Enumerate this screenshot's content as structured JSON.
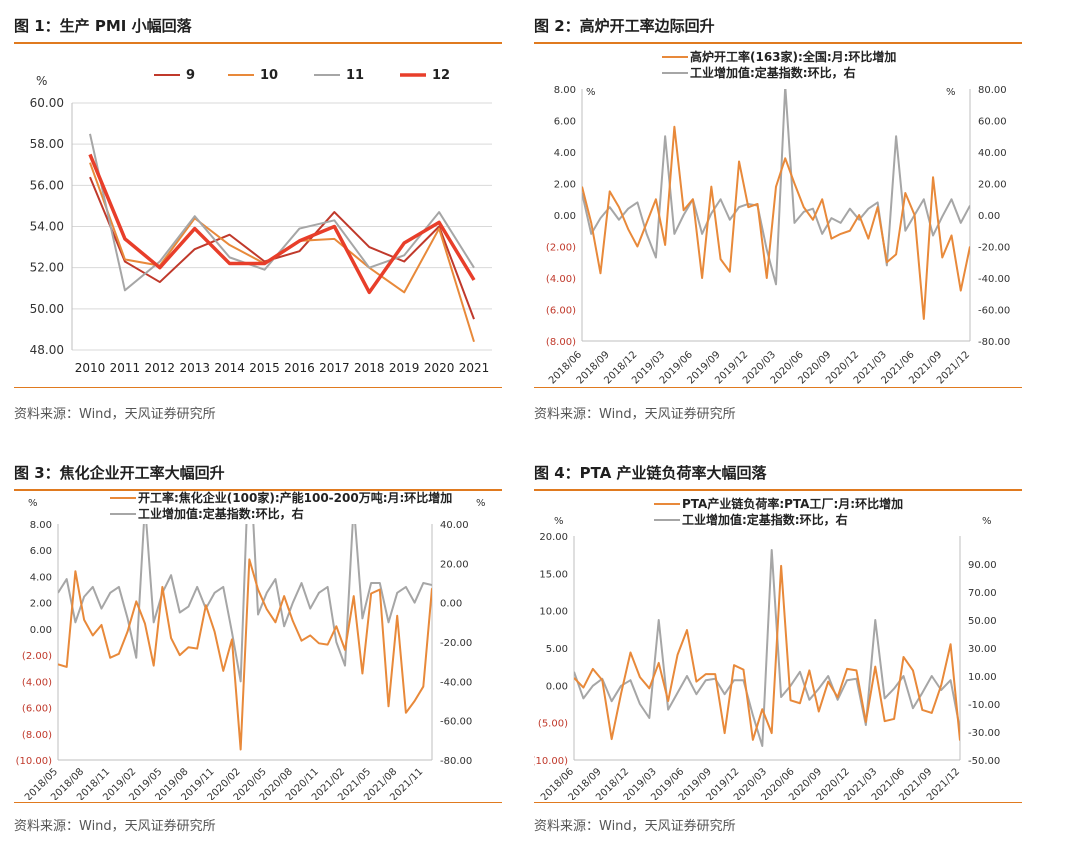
{
  "colors": {
    "accent": "#E07A1F",
    "orange": "#E8893A",
    "gray": "#A6A6A6"
  },
  "panels": [
    {
      "title": "图 1：生产 PMI 小幅回落",
      "source": "资料来源：Wind，天风证券研究所",
      "chart_data": {
        "type": "line",
        "x": [
          "2010",
          "2011",
          "2012",
          "2013",
          "2014",
          "2015",
          "2016",
          "2017",
          "2018",
          "2019",
          "2020",
          "2021"
        ],
        "ylabel_unit": "%",
        "ylim": [
          48,
          60
        ],
        "yticks": [
          "48.00",
          "50.00",
          "52.00",
          "54.00",
          "56.00",
          "58.00",
          "60.00"
        ],
        "grid": true,
        "legend_position": "top",
        "series": [
          {
            "name": "9",
            "color": "#C0392B",
            "width": 2,
            "values": [
              56.4,
              52.3,
              51.3,
              52.9,
              53.6,
              52.3,
              52.8,
              54.7,
              53.0,
              52.3,
              54.0,
              49.5
            ]
          },
          {
            "name": "10",
            "color": "#E8893A",
            "width": 2,
            "values": [
              57.1,
              52.4,
              52.1,
              54.4,
              53.1,
              52.2,
              53.3,
              53.4,
              52.0,
              50.8,
              53.9,
              48.4
            ]
          },
          {
            "name": "11",
            "color": "#A6A6A6",
            "width": 2,
            "values": [
              58.5,
              50.9,
              52.3,
              54.5,
              52.5,
              51.9,
              53.9,
              54.3,
              52.0,
              52.6,
              54.7,
              52.0
            ]
          },
          {
            "name": "12",
            "color": "#E83E2A",
            "width": 3.5,
            "values": [
              57.5,
              53.4,
              52.0,
              53.9,
              52.2,
              52.2,
              53.3,
              54.0,
              50.8,
              53.2,
              54.2,
              51.4
            ]
          }
        ]
      }
    },
    {
      "title": "图 2：高炉开工率边际回升",
      "source": "资料来源：Wind，天风证券研究所",
      "chart_data": {
        "type": "line",
        "dual_axis": true,
        "left_unit": "%",
        "right_unit": "%",
        "left_ylim": [
          -8,
          8
        ],
        "right_ylim": [
          -80,
          80
        ],
        "left_ticks": [
          "8.00",
          "6.00",
          "4.00",
          "2.00",
          "0.00",
          "(2.00)",
          "(4.00)",
          "(6.00)",
          "(8.00)"
        ],
        "right_ticks": [
          "80.00",
          "60.00",
          "40.00",
          "20.00",
          "0.00",
          "-20.00",
          "-40.00",
          "-60.00",
          "-80.00"
        ],
        "x_labels": [
          "2018/06",
          "2018/09",
          "2018/12",
          "2019/03",
          "2019/06",
          "2019/09",
          "2019/12",
          "2020/03",
          "2020/06",
          "2020/09",
          "2020/12",
          "2021/03",
          "2021/06",
          "2021/09",
          "2021/12"
        ],
        "x_start": "2018/06",
        "x_end": "2021/12",
        "legend_position": "top",
        "series": [
          {
            "name": "高炉开工率(163家):全国:月:环比增加",
            "axis": "left",
            "color": "#E8893A",
            "values": [
              1.8,
              -0.5,
              -3.7,
              1.5,
              0.5,
              -0.9,
              -2.0,
              -0.5,
              1.0,
              -1.9,
              5.6,
              0.3,
              1.0,
              -4.0,
              1.8,
              -2.8,
              -3.6,
              3.4,
              0.5,
              0.7,
              -4.0,
              1.8,
              3.6,
              2.0,
              0.5,
              -0.3,
              1.0,
              -1.5,
              -1.2,
              -1.0,
              0.0,
              -1.5,
              0.5,
              -3.0,
              -2.5,
              1.4,
              0.0,
              -6.6,
              2.4,
              -2.7,
              -1.3,
              -4.8,
              -2.0
            ]
          },
          {
            "name": "工业增加值:定基指数:环比，右",
            "axis": "right",
            "color": "#A6A6A6",
            "values": [
              14,
              -12,
              -2,
              5,
              -3,
              4,
              8,
              -12,
              -27,
              50,
              -12,
              0,
              10,
              -12,
              1,
              10,
              -3,
              5,
              7,
              6,
              -22,
              -44,
              82,
              -5,
              2,
              4,
              -12,
              -2,
              -5,
              4,
              -3,
              4,
              8,
              -32,
              50,
              -10,
              0,
              10,
              -13,
              -1,
              10,
              -5,
              6
            ]
          }
        ]
      }
    },
    {
      "title": "图 3：焦化企业开工率大幅回升",
      "source": "资料来源：Wind，天风证券研究所",
      "chart_data": {
        "type": "line",
        "dual_axis": true,
        "left_unit": "%",
        "right_unit": "%",
        "left_ylim": [
          -10,
          8
        ],
        "right_ylim": [
          -80,
          40
        ],
        "left_ticks": [
          "8.00",
          "6.00",
          "4.00",
          "2.00",
          "0.00",
          "(2.00)",
          "(4.00)",
          "(6.00)",
          "(8.00)",
          "(10.00)"
        ],
        "right_ticks": [
          "40.00",
          "20.00",
          "0.00",
          "-20.00",
          "-40.00",
          "-60.00",
          "-80.00"
        ],
        "x_labels": [
          "2018/05",
          "2018/08",
          "2018/11",
          "2019/02",
          "2019/05",
          "2019/08",
          "2019/11",
          "2020/02",
          "2020/05",
          "2020/08",
          "2020/11",
          "2021/02",
          "2021/05",
          "2021/08",
          "2021/11"
        ],
        "x_start": "2018/05",
        "x_end": "2021/12",
        "legend_position": "top",
        "series": [
          {
            "name": "开工率:焦化企业(100家):产能100-200万吨:月:环比增加",
            "axis": "left",
            "color": "#E8893A",
            "values": [
              -2.7,
              -2.9,
              4.4,
              0.7,
              -0.5,
              0.3,
              -2.2,
              -1.9,
              -0.2,
              2.1,
              0.4,
              -2.8,
              3.2,
              -0.7,
              -2.0,
              -1.4,
              -1.5,
              1.8,
              -0.2,
              -3.2,
              -0.8,
              -9.2,
              5.3,
              3.0,
              1.5,
              0.5,
              2.5,
              0.6,
              -0.9,
              -0.5,
              -1.1,
              -1.2,
              0.2,
              -1.6,
              2.5,
              -3.4,
              2.7,
              3.0,
              -5.9,
              1.0,
              -6.4,
              -5.5,
              -4.4,
              3.1
            ]
          },
          {
            "name": "工业增加值:定基指数:环比，右",
            "axis": "right",
            "color": "#A6A6A6",
            "values": [
              5,
              12,
              -10,
              3,
              8,
              -3,
              5,
              8,
              -8,
              -28,
              50,
              -10,
              5,
              14,
              -5,
              -2,
              8,
              -3,
              5,
              8,
              -15,
              -40,
              80,
              -6,
              5,
              12,
              -12,
              0,
              10,
              -3,
              5,
              8,
              -20,
              -32,
              50,
              -8,
              10,
              10,
              -10,
              5,
              8,
              0,
              10,
              9
            ]
          }
        ]
      }
    },
    {
      "title": "图 4：PTA 产业链负荷率大幅回落",
      "source": "资料来源：Wind，天风证券研究所",
      "chart_data": {
        "type": "line",
        "dual_axis": true,
        "left_unit": "%",
        "right_unit": "%",
        "left_ylim": [
          -10,
          20
        ],
        "right_ylim": [
          -50,
          110
        ],
        "left_ticks": [
          "20.00",
          "15.00",
          "10.00",
          "5.00",
          "0.00",
          "(5.00)",
          "(10.00)"
        ],
        "right_ticks": [
          "90.00",
          "70.00",
          "50.00",
          "30.00",
          "10.00",
          "-10.00",
          "-30.00",
          "-50.00"
        ],
        "x_labels": [
          "2018/06",
          "2018/09",
          "2018/12",
          "2019/03",
          "2019/06",
          "2019/09",
          "2019/12",
          "2020/03",
          "2020/06",
          "2020/09",
          "2020/12",
          "2021/03",
          "2021/06",
          "2021/09",
          "2021/12"
        ],
        "x_start": "2018/06",
        "x_end": "2021/12",
        "legend_position": "top",
        "series": [
          {
            "name": "PTA产业链负荷率:PTA工厂:月:环比增加",
            "axis": "left",
            "color": "#E8893A",
            "values": [
              1.0,
              -0.3,
              2.2,
              0.7,
              -7.2,
              -1.1,
              4.4,
              1.1,
              -0.4,
              3.0,
              -2.1,
              4.1,
              7.4,
              0.5,
              1.5,
              1.5,
              -6.4,
              2.7,
              2.1,
              -7.3,
              -3.2,
              -6.4,
              16.0,
              -2.0,
              -2.4,
              2.0,
              -3.5,
              0.5,
              -1.6,
              2.2,
              2.0,
              -4.9,
              2.5,
              -4.8,
              -4.5,
              3.8,
              2.0,
              -3.3,
              -3.7,
              0.0,
              5.5,
              -7.4
            ]
          },
          {
            "name": "工业增加值:定基指数:环比，右",
            "axis": "right",
            "color": "#A6A6A6",
            "values": [
              13,
              -6,
              3,
              8,
              -8,
              3,
              7,
              -10,
              -20,
              50,
              -14,
              -2,
              10,
              -3,
              7,
              8,
              -3,
              7,
              7,
              -18,
              -40,
              100,
              -5,
              3,
              13,
              -7,
              1,
              10,
              -7,
              7,
              8,
              -25,
              50,
              -6,
              1,
              10,
              -13,
              -2,
              10,
              0,
              7,
              -28
            ]
          }
        ]
      }
    }
  ]
}
